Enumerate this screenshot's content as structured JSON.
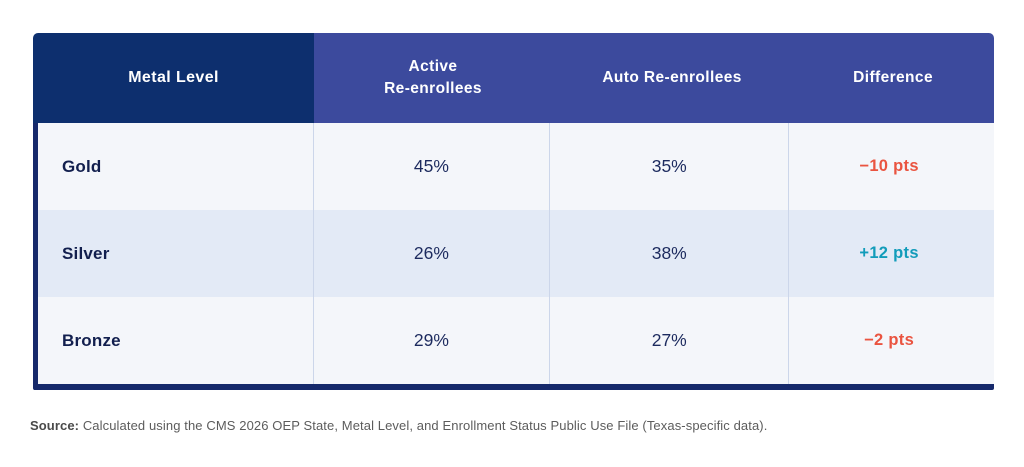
{
  "header": {
    "metal_level": "Metal Level",
    "active_line1": "Active",
    "active_line2": "Re-enrollees",
    "auto": "Auto Re-enrollees",
    "difference": "Difference"
  },
  "rows": [
    {
      "metal": "Gold",
      "active_pct": "45%",
      "auto_pct": "35%",
      "diff": "−10 pts",
      "diff_sign": "negative"
    },
    {
      "metal": "Silver",
      "active_pct": "26%",
      "auto_pct": "38%",
      "diff": "+12 pts",
      "diff_sign": "positive"
    },
    {
      "metal": "Bronze",
      "active_pct": "29%",
      "auto_pct": "27%",
      "diff": "−2 pts",
      "diff_sign": "negative"
    }
  ],
  "footer": {
    "source_label": "Source:",
    "source_text": " Calculated using the CMS 2026 OEP State, Metal Level, and Enrollment Status Public Use File (Texas-specific data)."
  },
  "colors": {
    "header_dark": "#0d2f6e",
    "header_purple": "#3c4a9d",
    "border_navy": "#16296b",
    "row_light": "#f4f6fa",
    "row_blue": "#e3eaf6",
    "divider": "#ccd6ea",
    "text_navy": "#1c2a5e",
    "text_navy_dark": "#121f4e",
    "negative": "#ea5440",
    "positive": "#129cba",
    "source_gray": "#5c5c5c"
  },
  "chart_data": {
    "type": "table",
    "title": "",
    "columns": [
      "Metal Level",
      "Active Re-enrollees",
      "Auto Re-enrollees",
      "Difference"
    ],
    "rows": [
      [
        "Gold",
        "45%",
        "35%",
        "−10 pts"
      ],
      [
        "Silver",
        "26%",
        "38%",
        "+12 pts"
      ],
      [
        "Bronze",
        "29%",
        "27%",
        "−2 pts"
      ]
    ],
    "notes": "Difference values are colored: negative values coral red, positive values teal.",
    "source": "Source: Calculated using the CMS 2026 OEP State, Metal Level, and Enrollment Status Public Use File (Texas-specific data)."
  }
}
